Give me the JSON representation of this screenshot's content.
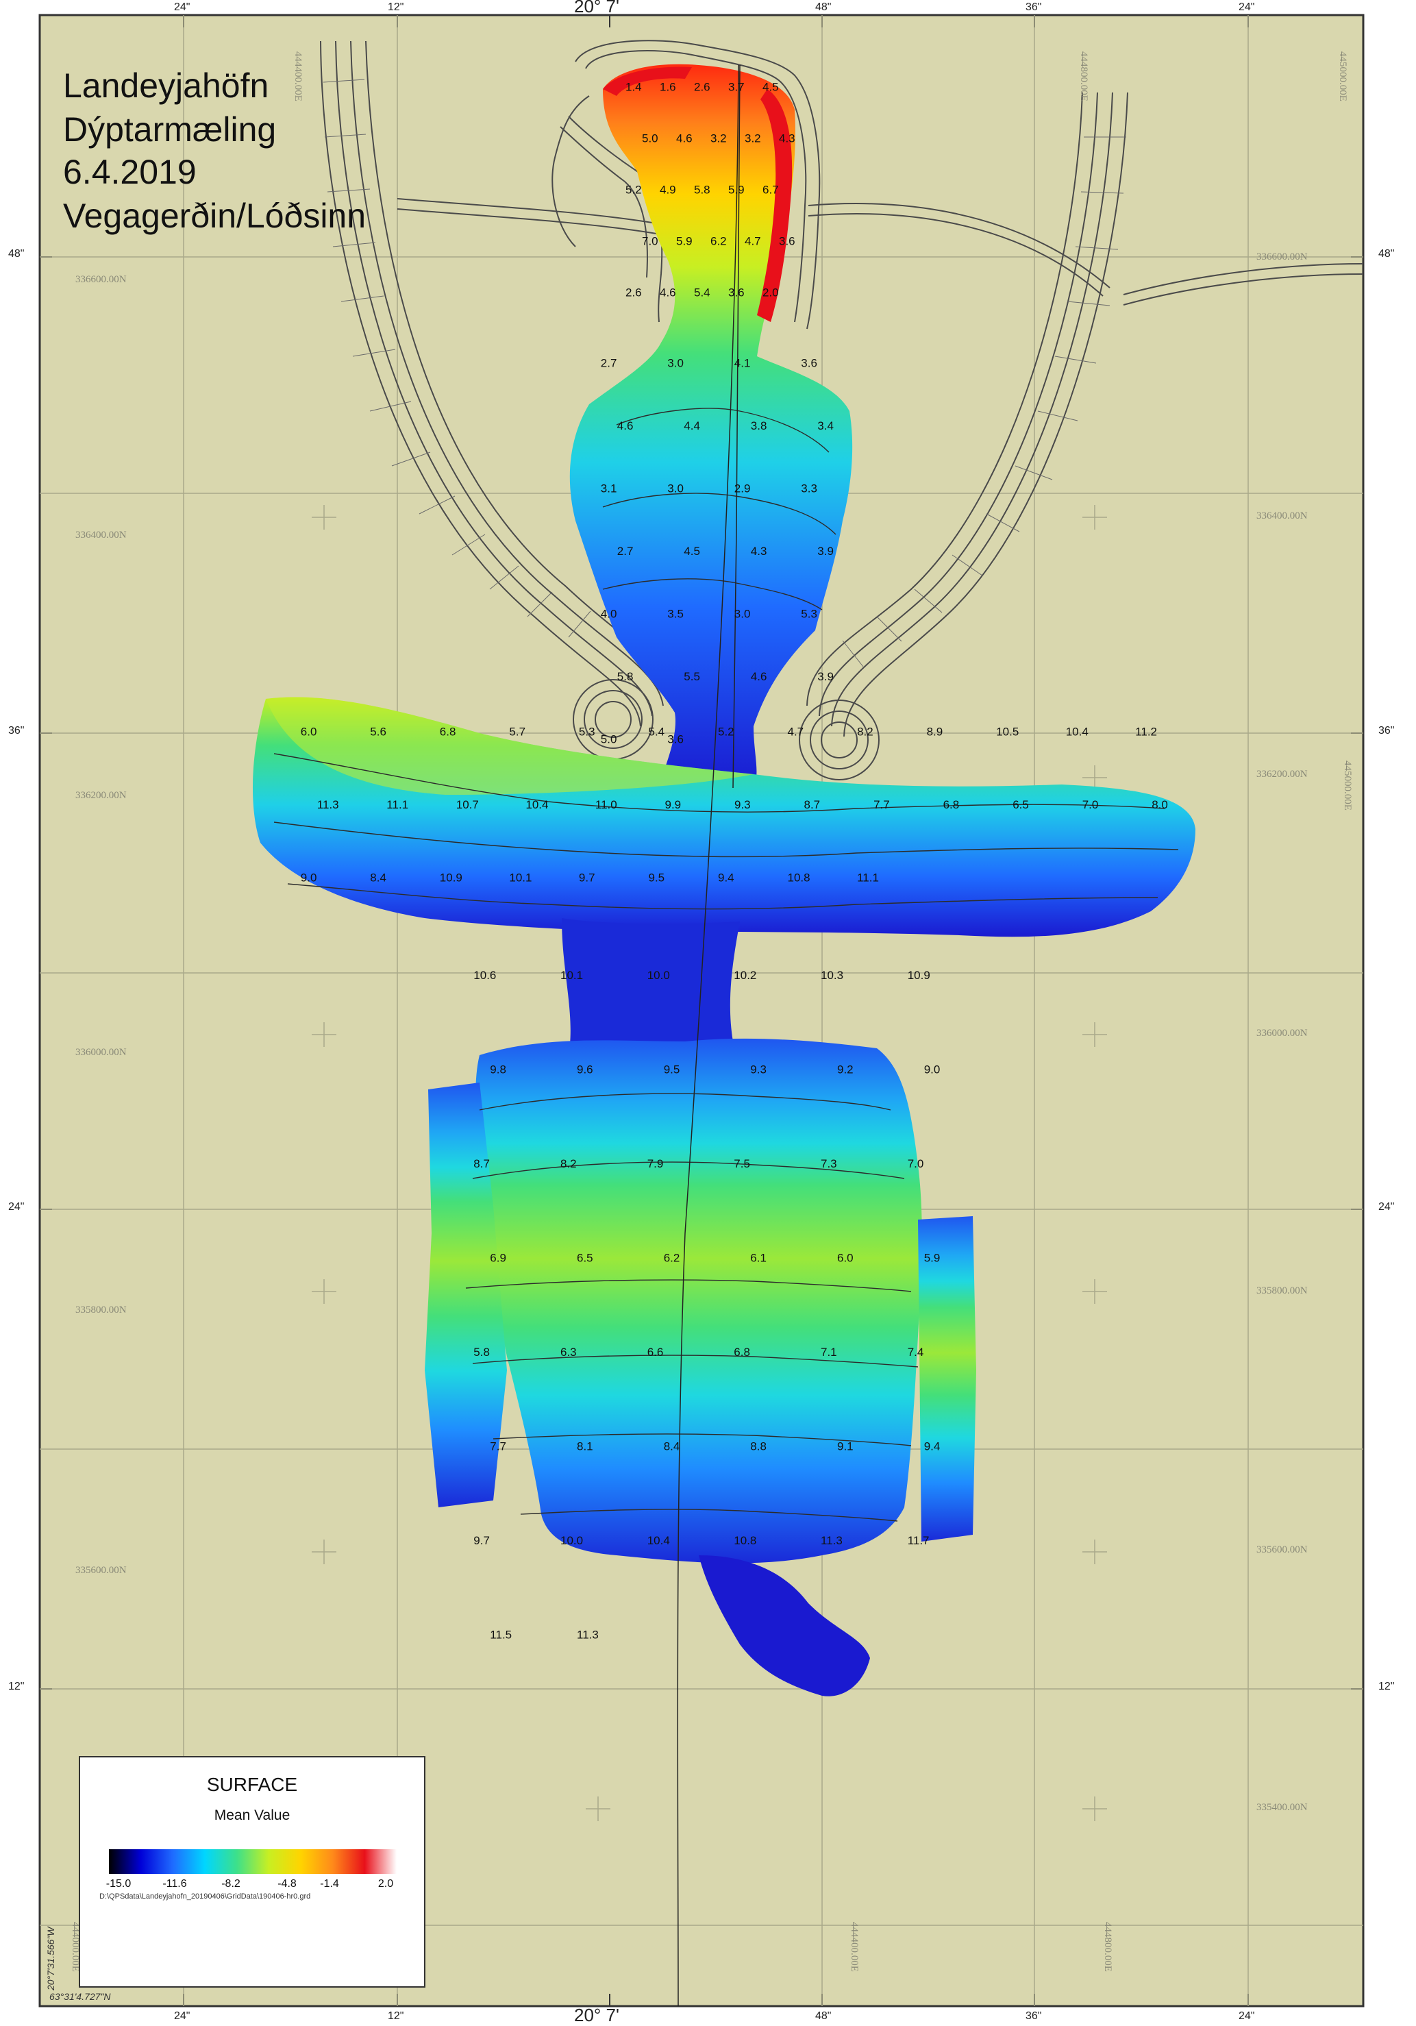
{
  "title": {
    "lines": [
      "Landeyjahöfn",
      "Dýptarmæling",
      "6.4.2019",
      "Vegagerðin/Lóðsinn"
    ]
  },
  "edge_labels": {
    "top": [
      "24\"",
      "12\"",
      "20° 7'",
      "48\"",
      "36\"",
      "24\""
    ],
    "bottom": [
      "24\"",
      "12\"",
      "20° 7'",
      "48\"",
      "36\"",
      "24\""
    ],
    "left": [
      "48\"",
      "36\"",
      "24\"",
      "12\""
    ],
    "right": [
      "48\"",
      "36\"",
      "24\"",
      "12\""
    ]
  },
  "grid_labels": {
    "northings_left": [
      "336600.00N",
      "336400.00N",
      "336200.00N",
      "336000.00N",
      "335800.00N",
      "335600.00N"
    ],
    "northings_right": [
      "336600.00N",
      "336400.00N",
      "336200.00N",
      "336000.00N",
      "335800.00N",
      "335600.00N",
      "335400.00N"
    ],
    "eastings_top": [
      "444400.00E",
      "444800.00E",
      "445000.00E"
    ],
    "eastings_bottom": [
      "444000.00E",
      "444400.00E",
      "444800.00E"
    ],
    "right_edge_easting": "445000.00E"
  },
  "corner_coords": {
    "lon": "20°7'31.566\"W",
    "lat": "63°31'4.727\"N"
  },
  "legend": {
    "title": "SURFACE",
    "subtitle": "Mean Value",
    "ticks": [
      "-15.0",
      "-11.6",
      "-8.2",
      "-4.8",
      "-1.4",
      "2.0"
    ],
    "gradient_colors": [
      "#000000",
      "#0000d8",
      "#1f6bff",
      "#00d6ff",
      "#3de08a",
      "#c8ef22",
      "#ffd400",
      "#ff8a1a",
      "#e8101a",
      "#ffffff"
    ],
    "file_path": "D:\\QPSdata\\Landeyjahofn_20190406\\GridData\\190406-hr0.grd"
  },
  "colors": {
    "background": "#d9d7ae",
    "grid_line": "#a9a98a",
    "structure_line": "#4a4a4a",
    "contour_line": "#2c2c2c"
  },
  "soundings": {
    "harbor_upper": [
      "1.4",
      "1.6",
      "2.6",
      "3.7",
      "4.5",
      "5.0",
      "4.6",
      "3.2",
      "3.2",
      "4.3",
      "5.2",
      "4.9",
      "5.8",
      "5.9",
      "6.7",
      "7.0",
      "5.9",
      "6.2",
      "4.7",
      "3.6",
      "2.6",
      "4.6",
      "5.4",
      "3.6",
      "2.0"
    ],
    "harbor_entrance": [
      "2.7",
      "3.0",
      "4.1",
      "3.6",
      "4.6",
      "4.4",
      "3.8",
      "3.4",
      "3.1",
      "3.0",
      "2.9",
      "3.3",
      "2.7",
      "4.5",
      "4.3",
      "3.9",
      "4.0",
      "3.5",
      "3.0",
      "5.3",
      "5.8",
      "5.5",
      "4.6",
      "3.9",
      "5.0",
      "3.6"
    ],
    "shoal": [
      "6.0",
      "5.6",
      "6.8",
      "5.7",
      "5.3",
      "5.4",
      "5.2",
      "4.7",
      "8.2",
      "8.9",
      "10.5",
      "10.4",
      "11.2",
      "11.3",
      "11.1",
      "10.7",
      "10.4",
      "11.0",
      "9.9",
      "9.3",
      "8.7",
      "7.7",
      "6.8",
      "6.5",
      "7.0",
      "8.0",
      "9.0",
      "8.4",
      "10.9",
      "10.1",
      "9.7",
      "9.5",
      "9.4",
      "10.8",
      "11.1"
    ],
    "channel": [
      "10.6",
      "10.1",
      "10.0",
      "10.2",
      "10.3",
      "10.9",
      "9.8",
      "9.6",
      "9.5",
      "9.3",
      "9.2",
      "9.0",
      "8.7",
      "8.2",
      "7.9",
      "7.5",
      "7.3",
      "7.0",
      "6.9",
      "6.5",
      "6.2",
      "6.1",
      "6.0",
      "5.9",
      "5.8",
      "6.3",
      "6.6",
      "6.8",
      "7.1",
      "7.4",
      "7.7",
      "8.1",
      "8.4",
      "8.8",
      "9.1",
      "9.4",
      "9.7",
      "10.0",
      "10.4",
      "10.8",
      "11.3",
      "11.7",
      "11.5",
      "11.3"
    ]
  }
}
